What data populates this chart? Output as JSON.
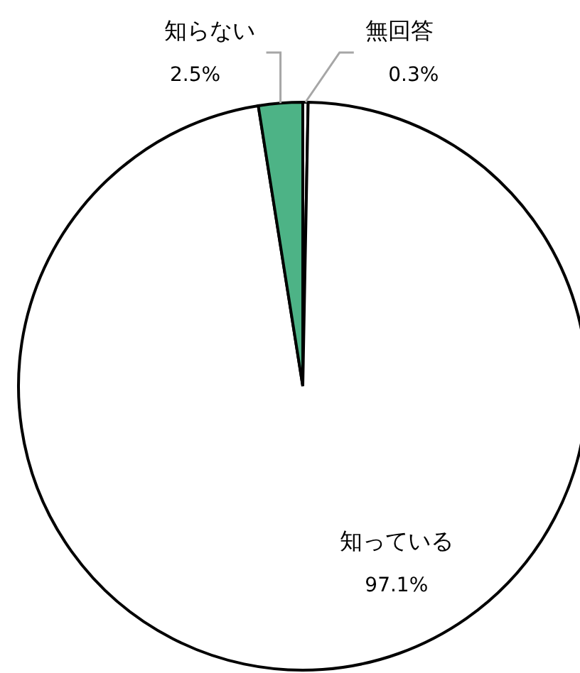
{
  "chart_data": {
    "type": "pie",
    "categories": [
      "無回答",
      "知っている",
      "知らない"
    ],
    "values": [
      0.3,
      97.1,
      2.5
    ],
    "value_labels": [
      "0.3%",
      "97.1%",
      "2.5%"
    ],
    "colors": [
      "#ffffff",
      "#ffffff",
      "#4db386"
    ],
    "legend": false
  }
}
